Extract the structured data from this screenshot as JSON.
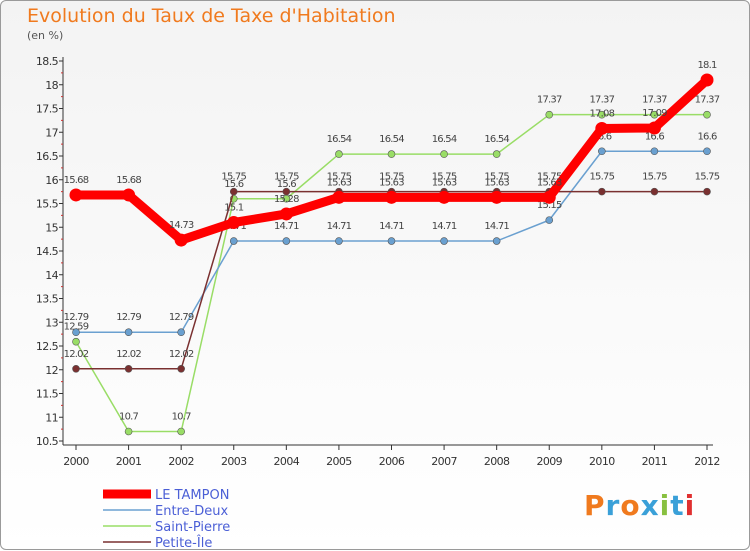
{
  "chart_data": {
    "type": "line",
    "title": "Evolution du Taux de Taxe d'Habitation",
    "subtitle": "(en %)",
    "x": [
      "2000",
      "2001",
      "2002",
      "2003",
      "2004",
      "2005",
      "2006",
      "2007",
      "2008",
      "2009",
      "2010",
      "2011",
      "2012"
    ],
    "ylim": [
      10.5,
      18.5
    ],
    "yticks": [
      "10.5",
      "11",
      "11.5",
      "12",
      "12.5",
      "13",
      "13.5",
      "14",
      "14.5",
      "15",
      "15.5",
      "16",
      "16.5",
      "17",
      "17.5",
      "18",
      "18.5"
    ],
    "grid": false,
    "legend_position": "bottom-left",
    "series": [
      {
        "name": "LE TAMPON",
        "color": "#ff0000",
        "values": [
          15.68,
          15.68,
          14.73,
          15.1,
          15.28,
          15.63,
          15.63,
          15.63,
          15.63,
          15.63,
          17.08,
          17.09,
          18.1
        ],
        "labels": [
          "15.68",
          "15.68",
          "14.73",
          "15.1",
          "15.28",
          "15.63",
          "15.63",
          "15.63",
          "15.63",
          "15.63",
          "17.08",
          "17.09",
          "18.1"
        ]
      },
      {
        "name": "Entre-Deux",
        "color": "#6aa0d0",
        "values": [
          12.79,
          12.79,
          12.79,
          14.71,
          14.71,
          14.71,
          14.71,
          14.71,
          14.71,
          15.15,
          16.6,
          16.6,
          16.6
        ],
        "labels": [
          "12.79",
          "12.79",
          "12.79",
          "14.71",
          "14.71",
          "14.71",
          "14.71",
          "14.71",
          "14.71",
          "15.15",
          "16.6",
          "16.6",
          "16.6"
        ]
      },
      {
        "name": "Saint-Pierre",
        "color": "#99dd66",
        "values": [
          12.59,
          10.7,
          10.7,
          15.6,
          15.6,
          16.54,
          16.54,
          16.54,
          16.54,
          17.37,
          17.37,
          17.37,
          17.37
        ],
        "labels": [
          "12.59",
          "10.7",
          "10.7",
          "15.6",
          "15.6",
          "16.54",
          "16.54",
          "16.54",
          "16.54",
          "17.37",
          "17.37",
          "17.37",
          "17.37"
        ]
      },
      {
        "name": "Petite-Île",
        "color": "#7a3030",
        "values": [
          12.02,
          12.02,
          12.02,
          15.75,
          15.75,
          15.75,
          15.75,
          15.75,
          15.75,
          15.75,
          15.75,
          15.75,
          15.75
        ],
        "labels": [
          "12.02",
          "12.02",
          "12.02",
          "15.75",
          "15.75",
          "15.75",
          "15.75",
          "15.75",
          "15.75",
          "15.75",
          "15.75",
          "15.75",
          "15.75"
        ]
      }
    ]
  },
  "brand": {
    "letters": [
      "P",
      "r",
      "o",
      "x",
      "i",
      "t",
      "i"
    ],
    "colors": [
      "#f07a1e",
      "#3aa0d8",
      "#f07a1e",
      "#3aa0d8",
      "#88c040",
      "#3aa0d8",
      "#e03030"
    ]
  }
}
